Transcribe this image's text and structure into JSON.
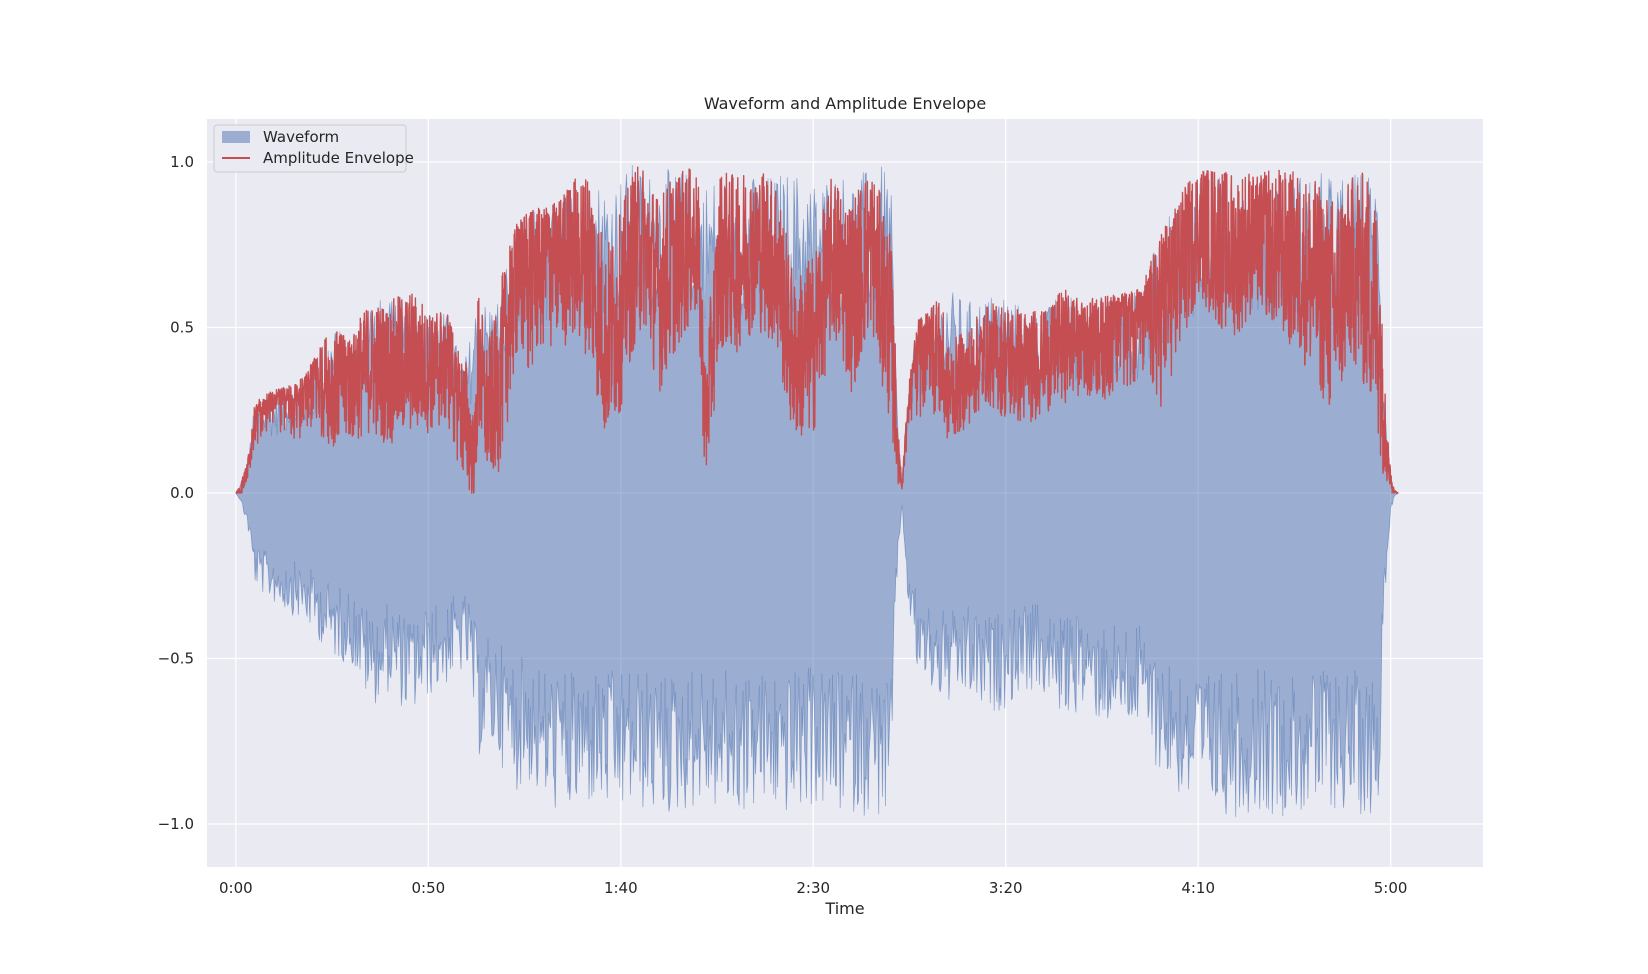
{
  "chart_data": {
    "type": "area",
    "title": "Waveform and Amplitude Envelope",
    "xlabel": "Time",
    "ylabel": "",
    "xlim": [
      -7.5,
      324
    ],
    "ylim": [
      -1.13,
      1.13
    ],
    "grid": true,
    "legend_position": "top-left",
    "x_ticks": [
      {
        "value": 0,
        "label": "0:00"
      },
      {
        "value": 50,
        "label": "0:50"
      },
      {
        "value": 100,
        "label": "1:40"
      },
      {
        "value": 150,
        "label": "2:30"
      },
      {
        "value": 200,
        "label": "3:20"
      },
      {
        "value": 250,
        "label": "4:10"
      },
      {
        "value": 300,
        "label": "5:00"
      }
    ],
    "y_ticks": [
      {
        "value": 1.0,
        "label": "1.0"
      },
      {
        "value": 0.5,
        "label": "0.5"
      },
      {
        "value": 0.0,
        "label": "0.0"
      },
      {
        "value": -0.5,
        "label": "−0.5"
      },
      {
        "value": -1.0,
        "label": "−1.0"
      }
    ],
    "colors": {
      "waveform": "#4c72b0",
      "envelope": "#c44e52",
      "plot_background": "#eaeaf2",
      "grid": "#ffffff"
    },
    "series": [
      {
        "name": "Waveform",
        "kind": "band",
        "x": [
          0,
          1,
          3,
          5,
          8,
          12,
          16,
          20,
          25,
          30,
          35,
          40,
          45,
          50,
          55,
          58,
          60,
          62,
          63,
          65,
          68,
          70,
          73,
          76,
          80,
          84,
          88,
          92,
          96,
          100,
          103,
          106,
          110,
          114,
          118,
          120,
          122,
          126,
          130,
          135,
          140,
          145,
          150,
          155,
          160,
          165,
          170,
          172,
          173,
          175,
          177,
          180,
          185,
          190,
          195,
          200,
          205,
          210,
          215,
          220,
          225,
          230,
          235,
          240,
          245,
          250,
          255,
          260,
          265,
          270,
          275,
          280,
          285,
          290,
          295,
          297,
          298,
          300,
          301,
          302
        ],
        "upper": [
          0,
          0.02,
          0.1,
          0.28,
          0.3,
          0.32,
          0.33,
          0.4,
          0.5,
          0.48,
          0.6,
          0.58,
          0.62,
          0.55,
          0.55,
          0.42,
          0.42,
          0.55,
          0.62,
          0.58,
          0.6,
          0.7,
          0.82,
          0.85,
          0.87,
          0.88,
          0.95,
          0.97,
          0.95,
          0.97,
          1.0,
          0.98,
          0.98,
          0.98,
          0.98,
          0.96,
          0.95,
          0.97,
          0.98,
          0.96,
          0.97,
          0.98,
          0.95,
          0.98,
          0.97,
          0.98,
          1.0,
          0.2,
          0.05,
          0.35,
          0.52,
          0.55,
          0.62,
          0.58,
          0.6,
          0.62,
          0.55,
          0.55,
          0.62,
          0.58,
          0.6,
          0.6,
          0.62,
          0.78,
          0.9,
          0.98,
          0.97,
          0.98,
          0.96,
          0.98,
          0.97,
          0.98,
          0.96,
          0.97,
          0.98,
          0.95,
          0.4,
          0.06,
          0.01,
          0
        ],
        "lower": [
          0,
          -0.02,
          -0.1,
          -0.28,
          -0.32,
          -0.35,
          -0.38,
          -0.42,
          -0.5,
          -0.52,
          -0.65,
          -0.6,
          -0.68,
          -0.62,
          -0.58,
          -0.55,
          -0.55,
          -0.7,
          -0.8,
          -0.78,
          -0.8,
          -0.85,
          -0.9,
          -0.88,
          -0.95,
          -0.97,
          -0.98,
          -0.95,
          -0.97,
          -0.98,
          -0.95,
          -0.97,
          -0.98,
          -0.98,
          -0.96,
          -0.95,
          -0.95,
          -0.97,
          -0.98,
          -0.96,
          -0.97,
          -0.98,
          -0.95,
          -0.98,
          -0.97,
          -0.98,
          -1.0,
          -0.2,
          -0.05,
          -0.4,
          -0.55,
          -0.6,
          -0.65,
          -0.62,
          -0.68,
          -0.65,
          -0.6,
          -0.62,
          -0.68,
          -0.66,
          -0.7,
          -0.7,
          -0.72,
          -0.85,
          -0.92,
          -0.98,
          -0.97,
          -0.98,
          -0.96,
          -0.98,
          -0.97,
          -0.98,
          -0.96,
          -0.97,
          -0.98,
          -0.95,
          -0.4,
          -0.06,
          -0.01,
          0
        ]
      },
      {
        "name": "Amplitude Envelope",
        "kind": "line",
        "x": [
          0,
          1,
          3,
          5,
          8,
          12,
          16,
          20,
          25,
          30,
          35,
          40,
          45,
          50,
          55,
          58,
          60,
          62,
          63,
          65,
          68,
          70,
          73,
          76,
          80,
          84,
          88,
          92,
          96,
          100,
          103,
          106,
          110,
          114,
          118,
          120,
          122,
          126,
          130,
          135,
          140,
          145,
          150,
          155,
          160,
          165,
          170,
          172,
          173,
          175,
          177,
          180,
          185,
          190,
          195,
          200,
          205,
          210,
          215,
          220,
          225,
          230,
          235,
          240,
          245,
          250,
          255,
          260,
          265,
          270,
          275,
          280,
          285,
          290,
          295,
          297,
          298,
          300,
          301,
          302
        ],
        "center": [
          0,
          0.02,
          0.08,
          0.28,
          0.3,
          0.33,
          0.3,
          0.35,
          0.32,
          0.35,
          0.38,
          0.36,
          0.4,
          0.38,
          0.42,
          0.28,
          0.2,
          0.1,
          0.4,
          0.25,
          0.3,
          0.45,
          0.7,
          0.65,
          0.72,
          0.7,
          0.75,
          0.7,
          0.45,
          0.55,
          0.7,
          0.75,
          0.6,
          0.7,
          0.75,
          0.75,
          0.2,
          0.72,
          0.7,
          0.75,
          0.72,
          0.4,
          0.45,
          0.72,
          0.6,
          0.75,
          0.5,
          0.15,
          0.02,
          0.35,
          0.4,
          0.55,
          0.3,
          0.35,
          0.42,
          0.4,
          0.38,
          0.42,
          0.45,
          0.5,
          0.48,
          0.55,
          0.6,
          0.55,
          0.7,
          0.8,
          0.75,
          0.72,
          0.78,
          0.75,
          0.7,
          0.65,
          0.55,
          0.7,
          0.6,
          0.5,
          0.3,
          0.05,
          0.01,
          0
        ],
        "band": [
          0,
          0.01,
          0.05,
          0.15,
          0.12,
          0.15,
          0.14,
          0.16,
          0.18,
          0.2,
          0.2,
          0.22,
          0.22,
          0.2,
          0.22,
          0.2,
          0.2,
          0.12,
          0.25,
          0.2,
          0.25,
          0.28,
          0.3,
          0.3,
          0.28,
          0.28,
          0.28,
          0.3,
          0.3,
          0.3,
          0.28,
          0.25,
          0.3,
          0.28,
          0.25,
          0.22,
          0.2,
          0.28,
          0.28,
          0.25,
          0.28,
          0.25,
          0.28,
          0.25,
          0.3,
          0.25,
          0.3,
          0.12,
          0.02,
          0.15,
          0.2,
          0.28,
          0.15,
          0.15,
          0.15,
          0.18,
          0.18,
          0.18,
          0.18,
          0.2,
          0.2,
          0.25,
          0.25,
          0.3,
          0.3,
          0.2,
          0.25,
          0.25,
          0.22,
          0.25,
          0.28,
          0.3,
          0.35,
          0.3,
          0.35,
          0.35,
          0.25,
          0.04,
          0.01,
          0
        ]
      }
    ]
  }
}
